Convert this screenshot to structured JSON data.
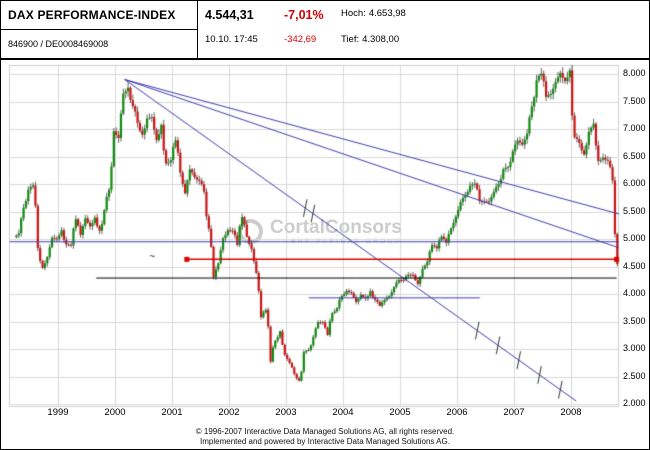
{
  "header": {
    "title": "DAX PERFORMANCE-INDEX",
    "id_line": "846900  /  DE0008469008",
    "last_price": "4.544,31",
    "timestamp": "10.10. 17:45",
    "change_pct": "-7,01%",
    "change_abs": "-342,69",
    "high_label": "Hoch:",
    "high_value": "4.653,98",
    "low_label": "Tief:",
    "low_value": "4.308,00",
    "negative_color": "#d40000"
  },
  "watermark": {
    "brand": "CortalConsors",
    "sub": "BNP PARIBAS GROUP"
  },
  "footer": {
    "line1": "© 1996-2007 Interactive Data Managed Solutions AG, all rights reserved.",
    "line2": "Implemented and powered by Interactive Data Managed Solutions AG."
  },
  "chart_data": {
    "type": "candlestick",
    "title": "DAX PERFORMANCE-INDEX",
    "frequency": "monthly",
    "start": "1998-04",
    "last_candle": {
      "date": "2008-10-10",
      "time": "17:45",
      "close": 4544.31,
      "high": 4653.98,
      "low": 4308.0,
      "change_pct": -7.01,
      "change_abs": -342.69
    },
    "ylim": [
      2000,
      8150
    ],
    "grid": true,
    "y_ticks": [
      "8.000",
      "7.500",
      "7.000",
      "6.500",
      "6.000",
      "5.500",
      "5.000",
      "4.500",
      "4.000",
      "3.500",
      "3.000",
      "2.500",
      "2.000"
    ],
    "y_tick_values": [
      8000,
      7500,
      7000,
      6500,
      6000,
      5500,
      5000,
      4500,
      4000,
      3500,
      3000,
      2500,
      2000
    ],
    "x_ticks": [
      "1999",
      "2000",
      "2001",
      "2002",
      "2003",
      "2004",
      "2005",
      "2006",
      "2007",
      "2008"
    ],
    "x_tick_values": [
      1999,
      2000,
      2001,
      2002,
      2003,
      2004,
      2005,
      2006,
      2007,
      2008
    ],
    "closes": [
      5106,
      5569,
      5897,
      5974,
      4834,
      4475,
      4671,
      5022,
      5002,
      5160,
      4901,
      4884,
      5359,
      5074,
      5379,
      5230,
      5390,
      5150,
      5525,
      5896,
      6958,
      6835,
      7644,
      7750,
      7415,
      7109,
      6898,
      7190,
      7216,
      6798,
      7077,
      6373,
      6434,
      6795,
      6208,
      5830,
      6265,
      6123,
      6058,
      5861,
      5188,
      4308,
      4559,
      5015,
      5160,
      5151,
      4891,
      5397,
      5041,
      4818,
      4383,
      3579,
      3712,
      2769,
      3152,
      3320,
      2893,
      2747,
      2547,
      2423,
      2942,
      2982,
      3220,
      3487,
      3484,
      3256,
      3655,
      3746,
      3965,
      4058,
      4018,
      3857,
      3985,
      3921,
      4052,
      3895,
      3785,
      3893,
      3960,
      4126,
      4256,
      4254,
      4350,
      4348,
      4184,
      4460,
      4586,
      4886,
      4830,
      5044,
      4929,
      5193,
      5408,
      5674,
      5796,
      5970,
      6009,
      5692,
      5683,
      5682,
      5859,
      6004,
      6268,
      6309,
      6596,
      6789,
      6715,
      6917,
      7409,
      7883,
      8007,
      7584,
      7638,
      7861,
      8019,
      7870,
      8067,
      6851,
      6748,
      6535,
      6948,
      7096,
      6418,
      6479,
      6422,
      6064,
      4544
    ],
    "style": {
      "up_color": "#0f8a0f",
      "down_color": "#cc1414",
      "wick_color": "#3c3c3c",
      "grid_color": "#d9d9d9",
      "trend_color": "#3d3dae"
    },
    "lines": [
      {
        "name": "downtrend-from-2000-peak-upper",
        "color": "#3d3dae",
        "points": [
          [
            2000.17,
            7900
          ],
          [
            2008.84,
            5455
          ]
        ]
      },
      {
        "name": "downtrend-from-2000-peak-mid",
        "color": "#3d3dae",
        "points": [
          [
            2000.17,
            7900
          ],
          [
            2008.84,
            4840
          ]
        ]
      },
      {
        "name": "downtrend-from-2000-peak-steep",
        "color": "#3d3dae",
        "points": [
          [
            2000.17,
            7900
          ],
          [
            2008.09,
            2055
          ]
        ],
        "hatch_fractions": [
          0.4,
          0.417,
          0.781,
          0.827,
          0.873,
          0.919,
          0.965
        ]
      },
      {
        "name": "horizontal-support-blue",
        "color": "#3d3dae",
        "points": [
          [
            1998.15,
            4950
          ],
          [
            2008.84,
            4950
          ]
        ]
      },
      {
        "name": "horizontal-resistance-red",
        "color": "#dd0000",
        "points": [
          [
            2001.26,
            4630
          ],
          [
            2008.8,
            4630
          ]
        ],
        "end_markers": true
      },
      {
        "name": "horizontal-support-black",
        "color": "#000000",
        "points": [
          [
            1999.67,
            4290
          ],
          [
            2008.8,
            4290
          ]
        ]
      },
      {
        "name": "horizontal-support-blue-minor",
        "color": "#3d3dae",
        "points": [
          [
            2003.4,
            3930
          ],
          [
            2006.4,
            3930
          ]
        ]
      }
    ],
    "annotations": [
      {
        "type": "tilde",
        "glyph": "~",
        "x": 2000.6,
        "v": 4610
      }
    ]
  }
}
